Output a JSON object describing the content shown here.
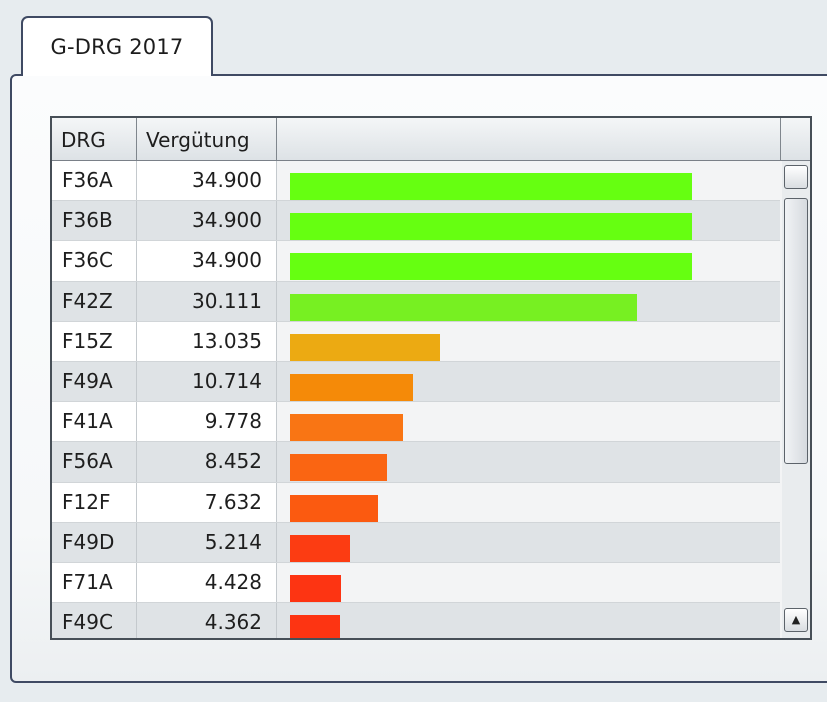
{
  "tab": {
    "label": "G-DRG 2017"
  },
  "table": {
    "columns": [
      "DRG",
      "Vergütung",
      ""
    ],
    "max_value": 34.9,
    "rows": [
      {
        "drg": "F36A",
        "verguetung": "34.900",
        "value": 34.9,
        "color": "#66ff11"
      },
      {
        "drg": "F36B",
        "verguetung": "34.900",
        "value": 34.9,
        "color": "#66ff11"
      },
      {
        "drg": "F36C",
        "verguetung": "34.900",
        "value": 34.9,
        "color": "#66ff11"
      },
      {
        "drg": "F42Z",
        "verguetung": "30.111",
        "value": 30.111,
        "color": "#77f022"
      },
      {
        "drg": "F15Z",
        "verguetung": "13.035",
        "value": 13.035,
        "color": "#ecaa12"
      },
      {
        "drg": "F49A",
        "verguetung": "10.714",
        "value": 10.714,
        "color": "#f58a08"
      },
      {
        "drg": "F41A",
        "verguetung": "9.778",
        "value": 9.778,
        "color": "#f97514"
      },
      {
        "drg": "F56A",
        "verguetung": "8.452",
        "value": 8.452,
        "color": "#fa6512"
      },
      {
        "drg": "F12F",
        "verguetung": "7.632",
        "value": 7.632,
        "color": "#fb5a10"
      },
      {
        "drg": "F49D",
        "verguetung": "5.214",
        "value": 5.214,
        "color": "#fc3c12"
      },
      {
        "drg": "F71A",
        "verguetung": "4.428",
        "value": 4.428,
        "color": "#fd3412"
      },
      {
        "drg": "F49C",
        "verguetung": "4.362",
        "value": 4.362,
        "color": "#fd3412"
      }
    ]
  },
  "scrollbar": {
    "up_icon": "chevron-up-icon",
    "down_icon": "chevron-down-icon"
  }
}
